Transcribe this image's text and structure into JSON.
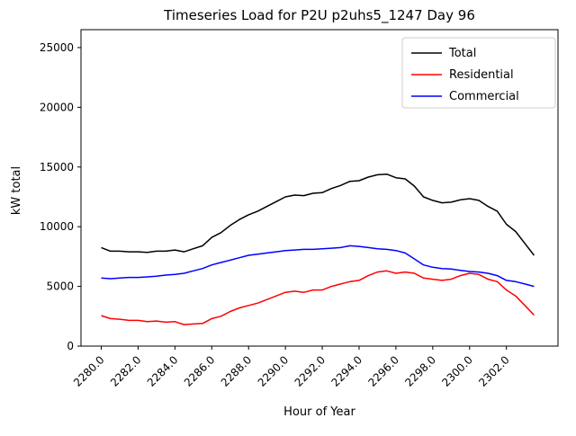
{
  "chart_data": {
    "type": "line",
    "title": "Timeseries Load for P2U p2uhs5_1247  Day 96",
    "xlabel": "Hour of Year",
    "ylabel": "kW total",
    "xlim": [
      2278.9,
      2304.8
    ],
    "ylim": [
      0,
      26500
    ],
    "grid": false,
    "legend_position": "upper right",
    "x_ticks": [
      "2280.0",
      "2282.0",
      "2284.0",
      "2286.0",
      "2288.0",
      "2290.0",
      "2292.0",
      "2294.0",
      "2296.0",
      "2298.0",
      "2300.0",
      "2302.0"
    ],
    "y_ticks": [
      "0",
      "5000",
      "10000",
      "15000",
      "20000",
      "25000"
    ],
    "x": [
      2280.0,
      2280.5,
      2281.0,
      2281.5,
      2282.0,
      2282.5,
      2283.0,
      2283.5,
      2284.0,
      2284.5,
      2285.0,
      2285.5,
      2286.0,
      2286.5,
      2287.0,
      2287.5,
      2288.0,
      2288.5,
      2289.0,
      2289.5,
      2290.0,
      2290.5,
      2291.0,
      2291.5,
      2292.0,
      2292.5,
      2293.0,
      2293.5,
      2294.0,
      2294.5,
      2295.0,
      2295.5,
      2296.0,
      2296.5,
      2297.0,
      2297.5,
      2298.0,
      2298.5,
      2299.0,
      2299.5,
      2300.0,
      2300.5,
      2301.0,
      2301.5,
      2302.0,
      2302.5,
      2303.0,
      2303.5
    ],
    "series": [
      {
        "name": "Total",
        "color": "#000000",
        "values": [
          8250,
          7950,
          7950,
          7900,
          7900,
          7850,
          7950,
          7950,
          8050,
          7900,
          8150,
          8400,
          9100,
          9500,
          10100,
          10600,
          11000,
          11300,
          11700,
          12100,
          12500,
          12650,
          12600,
          12800,
          12850,
          13200,
          13450,
          13800,
          13850,
          14150,
          14350,
          14400,
          14100,
          14000,
          13400,
          12500,
          12200,
          12000,
          12050,
          12250,
          12350,
          12200,
          11700,
          11300,
          10200,
          9600,
          8600,
          7600
        ]
      },
      {
        "name": "Residential",
        "color": "#ff0000",
        "values": [
          2550,
          2300,
          2250,
          2150,
          2150,
          2050,
          2100,
          2000,
          2050,
          1800,
          1850,
          1900,
          2300,
          2500,
          2900,
          3200,
          3400,
          3600,
          3900,
          4200,
          4500,
          4600,
          4500,
          4700,
          4700,
          5000,
          5200,
          5400,
          5500,
          5900,
          6200,
          6300,
          6100,
          6200,
          6100,
          5700,
          5600,
          5500,
          5600,
          5900,
          6100,
          6000,
          5600,
          5400,
          4700,
          4200,
          3400,
          2600
        ]
      },
      {
        "name": "Commercial",
        "color": "#0000ff",
        "values": [
          5700,
          5650,
          5700,
          5750,
          5750,
          5800,
          5850,
          5950,
          6000,
          6100,
          6300,
          6500,
          6800,
          7000,
          7200,
          7400,
          7600,
          7700,
          7800,
          7900,
          8000,
          8050,
          8100,
          8100,
          8150,
          8200,
          8250,
          8400,
          8350,
          8250,
          8150,
          8100,
          8000,
          7800,
          7300,
          6800,
          6600,
          6500,
          6450,
          6350,
          6250,
          6200,
          6100,
          5900,
          5500,
          5400,
          5200,
          5000
        ]
      }
    ]
  }
}
